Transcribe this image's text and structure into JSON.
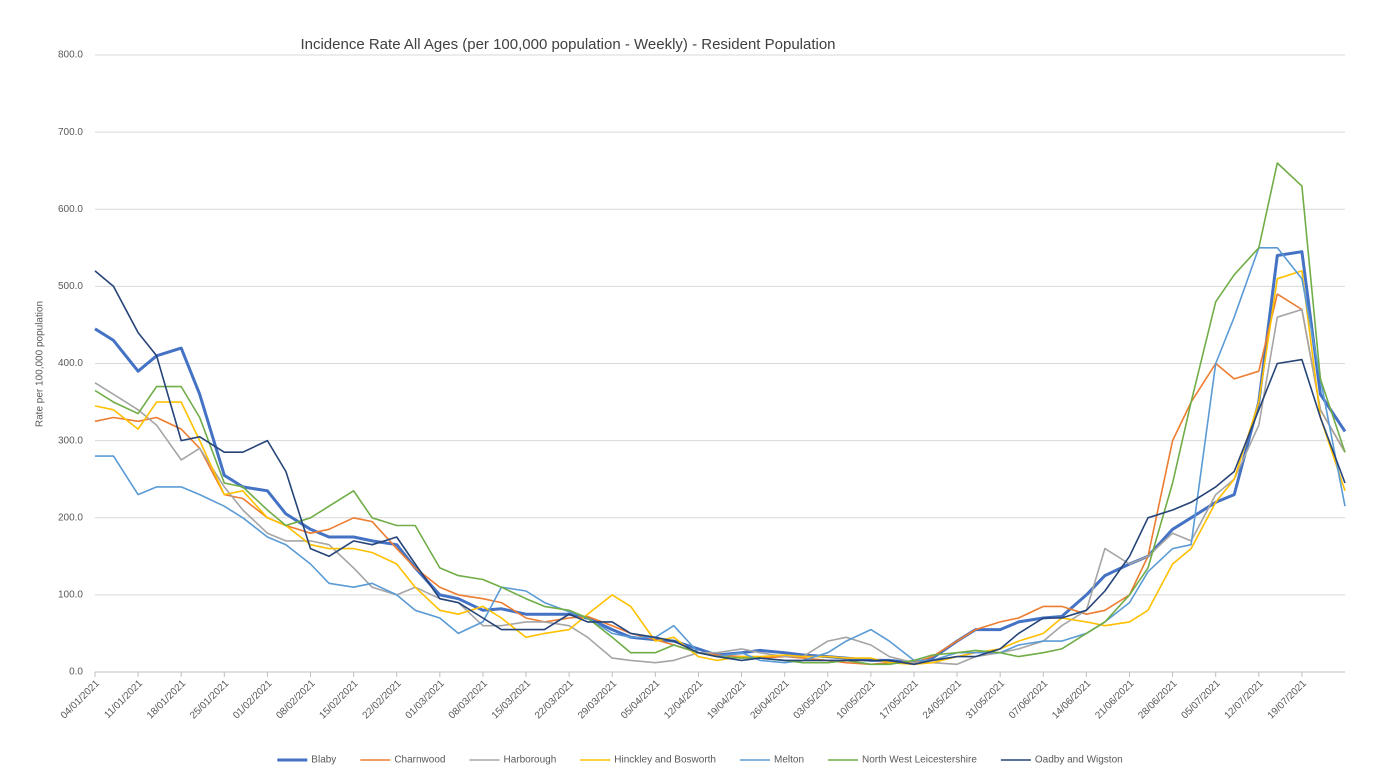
{
  "chart_data": {
    "type": "line",
    "title": "Incidence Rate All Ages (per 100,000 population - Weekly) - Resident Population",
    "y_label": "Rate per 100,000 population",
    "x": [
      "04/01/2021",
      "07/01/2021",
      "11/01/2021",
      "14/01/2021",
      "18/01/2021",
      "21/01/2021",
      "25/01/2021",
      "28/01/2021",
      "01/02/2021",
      "04/02/2021",
      "08/02/2021",
      "11/02/2021",
      "15/02/2021",
      "18/02/2021",
      "22/02/2021",
      "25/02/2021",
      "01/03/2021",
      "04/03/2021",
      "08/03/2021",
      "11/03/2021",
      "15/03/2021",
      "18/03/2021",
      "22/03/2021",
      "25/03/2021",
      "29/03/2021",
      "01/04/2021",
      "05/04/2021",
      "08/04/2021",
      "12/04/2021",
      "15/04/2021",
      "19/04/2021",
      "22/04/2021",
      "26/04/2021",
      "29/04/2021",
      "03/05/2021",
      "06/05/2021",
      "10/05/2021",
      "13/05/2021",
      "17/05/2021",
      "20/05/2021",
      "24/05/2021",
      "27/05/2021",
      "31/05/2021",
      "03/06/2021",
      "07/06/2021",
      "10/06/2021",
      "14/06/2021",
      "17/06/2021",
      "21/06/2021",
      "24/06/2021",
      "28/06/2021",
      "01/07/2021",
      "05/07/2021",
      "08/07/2021",
      "12/07/2021",
      "15/07/2021",
      "19/07/2021",
      "22/07/2021",
      "26/07/2021"
    ],
    "xlim": [
      "04/01/2021",
      "26/07/2021"
    ],
    "xticks": [
      "04/01/2021",
      "11/01/2021",
      "18/01/2021",
      "25/01/2021",
      "01/02/2021",
      "08/02/2021",
      "15/02/2021",
      "22/02/2021",
      "01/03/2021",
      "08/03/2021",
      "15/03/2021",
      "22/03/2021",
      "29/03/2021",
      "05/04/2021",
      "12/04/2021",
      "19/04/2021",
      "26/04/2021",
      "03/05/2021",
      "10/05/2021",
      "17/05/2021",
      "24/05/2021",
      "31/05/2021",
      "07/06/2021",
      "14/06/2021",
      "21/06/2021",
      "28/06/2021",
      "05/07/2021",
      "12/07/2021",
      "19/07/2021"
    ],
    "ylim": [
      0,
      800
    ],
    "yticks": [
      {
        "value": 0,
        "label": "0.0"
      },
      {
        "value": 100,
        "label": "100.0"
      },
      {
        "value": 200,
        "label": "200.0"
      },
      {
        "value": 300,
        "label": "300.0"
      },
      {
        "value": 400,
        "label": "400.0"
      },
      {
        "value": 500,
        "label": "500.0"
      },
      {
        "value": 600,
        "label": "600.0"
      },
      {
        "value": 700,
        "label": "700.0"
      },
      {
        "value": 800,
        "label": "800.0"
      }
    ],
    "grid": true,
    "legend": "bottom",
    "series": [
      {
        "name": "Blaby",
        "color": "#4472c4",
        "values": [
          445,
          430,
          390,
          410,
          420,
          360,
          255,
          240,
          235,
          205,
          185,
          175,
          175,
          170,
          165,
          135,
          100,
          95,
          80,
          82,
          75,
          75,
          75,
          70,
          55,
          45,
          42,
          40,
          30,
          22,
          25,
          28,
          25,
          22,
          20,
          18,
          15,
          15,
          12,
          18,
          40,
          55,
          55,
          65,
          70,
          72,
          100,
          125,
          140,
          150,
          185,
          200,
          220,
          230,
          350,
          540,
          545,
          360,
          312
        ]
      },
      {
        "name": "Charnwood",
        "color": "#ed7d31",
        "values": [
          325,
          330,
          325,
          330,
          315,
          290,
          230,
          225,
          200,
          190,
          180,
          185,
          200,
          195,
          160,
          135,
          110,
          100,
          95,
          90,
          70,
          65,
          70,
          72,
          60,
          50,
          42,
          35,
          25,
          22,
          20,
          18,
          20,
          18,
          15,
          12,
          10,
          12,
          12,
          20,
          40,
          55,
          65,
          70,
          85,
          85,
          75,
          80,
          100,
          150,
          300,
          350,
          400,
          380,
          390,
          490,
          470,
          340,
          285
        ]
      },
      {
        "name": "Harborough",
        "color": "#a5a5a5",
        "values": [
          375,
          360,
          340,
          320,
          275,
          290,
          240,
          210,
          180,
          170,
          170,
          165,
          135,
          110,
          100,
          110,
          95,
          90,
          60,
          60,
          65,
          65,
          60,
          45,
          18,
          15,
          12,
          15,
          25,
          25,
          30,
          25,
          20,
          20,
          40,
          45,
          35,
          20,
          12,
          12,
          10,
          20,
          25,
          30,
          40,
          60,
          80,
          160,
          140,
          150,
          180,
          170,
          230,
          250,
          320,
          460,
          470,
          340,
          285
        ]
      },
      {
        "name": "Hinckley and Bosworth",
        "color": "#ffc000",
        "values": [
          345,
          340,
          315,
          350,
          350,
          300,
          230,
          235,
          200,
          190,
          165,
          160,
          160,
          155,
          140,
          110,
          80,
          75,
          85,
          70,
          45,
          50,
          55,
          75,
          100,
          85,
          40,
          45,
          20,
          15,
          20,
          20,
          22,
          20,
          20,
          18,
          18,
          12,
          10,
          12,
          20,
          25,
          30,
          40,
          50,
          70,
          65,
          60,
          65,
          80,
          140,
          160,
          220,
          250,
          350,
          510,
          520,
          330,
          235
        ]
      },
      {
        "name": "Melton",
        "color": "#5b9bd5",
        "values": [
          280,
          280,
          230,
          240,
          240,
          230,
          215,
          200,
          175,
          165,
          140,
          115,
          110,
          115,
          100,
          80,
          70,
          50,
          65,
          110,
          105,
          90,
          78,
          70,
          50,
          45,
          45,
          60,
          25,
          20,
          25,
          15,
          12,
          15,
          25,
          40,
          55,
          40,
          15,
          15,
          25,
          25,
          25,
          35,
          40,
          40,
          50,
          65,
          90,
          130,
          160,
          165,
          400,
          460,
          550,
          550,
          510,
          380,
          215
        ]
      },
      {
        "name": "North West Leicestershire",
        "color": "#70ad47",
        "values": [
          365,
          350,
          335,
          370,
          370,
          330,
          245,
          240,
          210,
          190,
          200,
          215,
          235,
          200,
          190,
          190,
          135,
          125,
          120,
          110,
          95,
          85,
          80,
          70,
          45,
          25,
          25,
          35,
          25,
          20,
          18,
          18,
          15,
          12,
          12,
          15,
          10,
          10,
          15,
          22,
          25,
          28,
          25,
          20,
          25,
          30,
          50,
          65,
          100,
          135,
          245,
          350,
          480,
          515,
          550,
          660,
          630,
          380,
          285
        ]
      },
      {
        "name": "Oadby and Wigston",
        "color": "#264478",
        "values": [
          520,
          500,
          440,
          410,
          300,
          305,
          285,
          285,
          300,
          260,
          160,
          150,
          170,
          165,
          175,
          140,
          95,
          90,
          70,
          55,
          55,
          55,
          75,
          65,
          65,
          50,
          45,
          40,
          25,
          20,
          15,
          18,
          15,
          15,
          15,
          15,
          15,
          15,
          10,
          15,
          20,
          20,
          30,
          50,
          70,
          70,
          80,
          105,
          150,
          200,
          210,
          220,
          240,
          260,
          340,
          400,
          405,
          330,
          245
        ]
      }
    ]
  }
}
